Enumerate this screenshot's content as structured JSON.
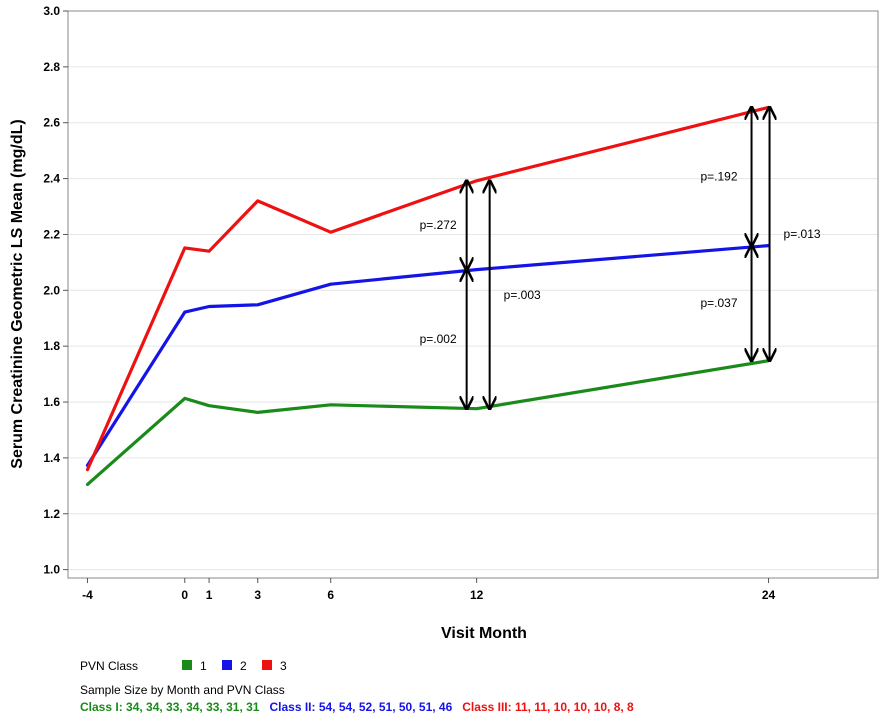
{
  "chart_data": {
    "type": "line",
    "xlabel": "Visit Month",
    "ylabel": "Serum Creatinine Geometric LS Mean (mg/dL)",
    "xlim": [
      -4.8,
      28.5
    ],
    "ylim": [
      0.97,
      3.0
    ],
    "x_ticks": [
      -4,
      0,
      1,
      3,
      6,
      12,
      24
    ],
    "y_ticks": [
      1.0,
      1.2,
      1.4,
      1.6,
      1.8,
      2.0,
      2.2,
      2.4,
      2.6,
      2.8,
      3.0
    ],
    "y_tick_labels": [
      "1.0",
      "1.2",
      "1.4",
      "1.6",
      "1.8",
      "2.0",
      "2.2",
      "2.4",
      "2.6",
      "2.8",
      "3.0"
    ],
    "grid": "horizontal",
    "x": [
      -4,
      0,
      1,
      3,
      6,
      12,
      24
    ],
    "series": [
      {
        "name": "1",
        "color": "#1a8a1a",
        "values": [
          1.305,
          1.613,
          1.587,
          1.563,
          1.59,
          1.576,
          1.748
        ]
      },
      {
        "name": "2",
        "color": "#1414e6",
        "values": [
          1.373,
          1.922,
          1.942,
          1.948,
          2.022,
          2.074,
          2.16
        ]
      },
      {
        "name": "3",
        "color": "#ee1111",
        "values": [
          1.358,
          2.152,
          2.14,
          2.32,
          2.208,
          2.392,
          2.655
        ]
      }
    ],
    "annotations": [
      {
        "label": "p=.272",
        "x": 12,
        "from": 2.074,
        "to": 2.392
      },
      {
        "label": "p=.002",
        "x": 12,
        "from": 1.576,
        "to": 2.074
      },
      {
        "label": "p=.003",
        "x": 12,
        "from": 1.576,
        "to": 2.392
      },
      {
        "label": "p=.192",
        "x": 24,
        "from": 2.16,
        "to": 2.655
      },
      {
        "label": "p=.037",
        "x": 24,
        "from": 1.748,
        "to": 2.16
      },
      {
        "label": "p=.013",
        "x": 24,
        "from": 1.748,
        "to": 2.655
      }
    ],
    "legend": {
      "title": "PVN Class",
      "entries": [
        {
          "label": "1",
          "color": "#1a8a1a"
        },
        {
          "label": "2",
          "color": "#1414e6"
        },
        {
          "label": "3",
          "color": "#ee1111"
        }
      ]
    },
    "sample_size": {
      "title": "Sample Size by Month and PVN Class",
      "lines": [
        {
          "text": "Class I:  34, 34, 33, 34, 33, 31, 31",
          "color": "#1a8a1a"
        },
        {
          "text": "Class II:  54, 54, 52, 51, 50, 51, 46",
          "color": "#1414e6"
        },
        {
          "text": "Class III:  11, 11, 10, 10, 10, 8, 8",
          "color": "#ee1111"
        }
      ]
    }
  }
}
